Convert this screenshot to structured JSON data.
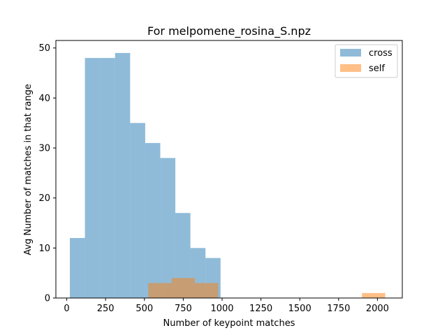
{
  "chart_data": {
    "type": "bar",
    "title": "For melpomene_rosina_S.npz",
    "xlabel": "Number of keypoint matches",
    "ylabel": "Avg Number of matches in that range",
    "xlim": [
      -70,
      2160
    ],
    "ylim": [
      0,
      51.5
    ],
    "xticks": [
      0,
      250,
      500,
      750,
      1000,
      1250,
      1500,
      1750,
      2000
    ],
    "yticks": [
      0,
      10,
      20,
      30,
      40,
      50
    ],
    "legend_position": "top-right",
    "series": [
      {
        "name": "cross",
        "color": "#1f77b4",
        "opacity": 0.5,
        "bins": [
          {
            "x0": 20,
            "x1": 117,
            "value": 12
          },
          {
            "x0": 117,
            "x1": 214,
            "value": 48
          },
          {
            "x0": 214,
            "x1": 311,
            "value": 48
          },
          {
            "x0": 311,
            "x1": 408,
            "value": 49
          },
          {
            "x0": 408,
            "x1": 505,
            "value": 35
          },
          {
            "x0": 505,
            "x1": 602,
            "value": 31
          },
          {
            "x0": 602,
            "x1": 699,
            "value": 28
          },
          {
            "x0": 699,
            "x1": 796,
            "value": 17
          },
          {
            "x0": 796,
            "x1": 893,
            "value": 10
          },
          {
            "x0": 893,
            "x1": 990,
            "value": 8
          }
        ]
      },
      {
        "name": "self",
        "color": "#ff7f0e",
        "opacity": 0.5,
        "bins": [
          {
            "x0": 525,
            "x1": 675,
            "value": 3
          },
          {
            "x0": 675,
            "x1": 825,
            "value": 4
          },
          {
            "x0": 825,
            "x1": 975,
            "value": 3
          },
          {
            "x0": 1900,
            "x1": 2050,
            "value": 1
          }
        ]
      }
    ]
  }
}
